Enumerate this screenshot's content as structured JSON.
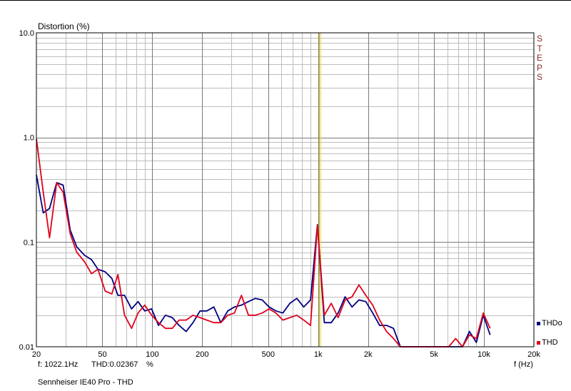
{
  "chart_data": {
    "type": "line",
    "ylabel": "Distortion (%)",
    "xlabel": "f (Hz)",
    "yscale": "log",
    "xscale": "log",
    "xlim": [
      20,
      20000
    ],
    "ylim": [
      0.01,
      10.0
    ],
    "x_ticks": [
      {
        "value": 20,
        "label": "20"
      },
      {
        "value": 50,
        "label": "50"
      },
      {
        "value": 100,
        "label": "100"
      },
      {
        "value": 200,
        "label": "200"
      },
      {
        "value": 500,
        "label": "500"
      },
      {
        "value": 1000,
        "label": "1k"
      },
      {
        "value": 2000,
        "label": "2k"
      },
      {
        "value": 5000,
        "label": "5k"
      },
      {
        "value": 10000,
        "label": "10k"
      },
      {
        "value": 20000,
        "label": "20k"
      }
    ],
    "y_ticks": [
      {
        "value": 10,
        "label": "10.0"
      },
      {
        "value": 1,
        "label": "1.0"
      },
      {
        "value": 0.1,
        "label": "0.1"
      },
      {
        "value": 0.01,
        "label": "0.01"
      }
    ],
    "grid": true,
    "cursor_x": 1022.1,
    "legend_position": "right-bottom",
    "series": [
      {
        "name": "THDo",
        "color": "#000080",
        "points": [
          [
            20,
            0.44
          ],
          [
            22,
            0.19
          ],
          [
            24,
            0.21
          ],
          [
            26.5,
            0.37
          ],
          [
            29,
            0.35
          ],
          [
            32,
            0.13
          ],
          [
            35,
            0.09
          ],
          [
            39,
            0.075
          ],
          [
            43,
            0.068
          ],
          [
            47,
            0.055
          ],
          [
            52,
            0.052
          ],
          [
            57,
            0.045
          ],
          [
            62,
            0.031
          ],
          [
            68,
            0.031
          ],
          [
            75,
            0.023
          ],
          [
            82,
            0.027
          ],
          [
            90,
            0.022
          ],
          [
            99,
            0.023
          ],
          [
            109,
            0.016
          ],
          [
            120,
            0.02
          ],
          [
            132,
            0.019
          ],
          [
            145,
            0.016
          ],
          [
            160,
            0.014
          ],
          [
            176,
            0.017
          ],
          [
            194,
            0.022
          ],
          [
            213,
            0.022
          ],
          [
            235,
            0.024
          ],
          [
            259,
            0.017
          ],
          [
            285,
            0.022
          ],
          [
            313,
            0.024
          ],
          [
            345,
            0.025
          ],
          [
            380,
            0.027
          ],
          [
            418,
            0.029
          ],
          [
            460,
            0.028
          ],
          [
            506,
            0.024
          ],
          [
            557,
            0.022
          ],
          [
            613,
            0.021
          ],
          [
            675,
            0.026
          ],
          [
            743,
            0.029
          ],
          [
            818,
            0.024
          ],
          [
            900,
            0.028
          ],
          [
            990,
            0.147
          ],
          [
            1090,
            0.017
          ],
          [
            1200,
            0.017
          ],
          [
            1321,
            0.021
          ],
          [
            1454,
            0.03
          ],
          [
            1600,
            0.024
          ],
          [
            1762,
            0.028
          ],
          [
            1939,
            0.027
          ],
          [
            2134,
            0.021
          ],
          [
            2349,
            0.016
          ],
          [
            2585,
            0.016
          ],
          [
            2846,
            0.015
          ],
          [
            3132,
            0.01
          ],
          [
            3448,
            0.0095
          ],
          [
            3795,
            0.0093
          ],
          [
            4177,
            0.0098
          ],
          [
            4597,
            0.0092
          ],
          [
            5060,
            0.0095
          ],
          [
            5569,
            0.0088
          ],
          [
            6130,
            0.0096
          ],
          [
            6747,
            0.0097
          ],
          [
            7426,
            0.0095
          ],
          [
            8173,
            0.014
          ],
          [
            8996,
            0.011
          ],
          [
            9901,
            0.02
          ],
          [
            10898,
            0.013
          ]
        ]
      },
      {
        "name": "THD",
        "color": "#e0001b",
        "points": [
          [
            20,
            0.97
          ],
          [
            22,
            0.3
          ],
          [
            24,
            0.11
          ],
          [
            26.5,
            0.37
          ],
          [
            29,
            0.3
          ],
          [
            32,
            0.12
          ],
          [
            35,
            0.08
          ],
          [
            39,
            0.065
          ],
          [
            43,
            0.05
          ],
          [
            47,
            0.055
          ],
          [
            52,
            0.034
          ],
          [
            57,
            0.032
          ],
          [
            62,
            0.049
          ],
          [
            68,
            0.02
          ],
          [
            75,
            0.015
          ],
          [
            82,
            0.021
          ],
          [
            90,
            0.025
          ],
          [
            99,
            0.02
          ],
          [
            109,
            0.017
          ],
          [
            120,
            0.015
          ],
          [
            132,
            0.015
          ],
          [
            145,
            0.018
          ],
          [
            160,
            0.018
          ],
          [
            176,
            0.02
          ],
          [
            194,
            0.019
          ],
          [
            213,
            0.018
          ],
          [
            235,
            0.017
          ],
          [
            259,
            0.017
          ],
          [
            285,
            0.02
          ],
          [
            313,
            0.021
          ],
          [
            345,
            0.031
          ],
          [
            380,
            0.02
          ],
          [
            418,
            0.02
          ],
          [
            460,
            0.021
          ],
          [
            506,
            0.023
          ],
          [
            557,
            0.021
          ],
          [
            613,
            0.018
          ],
          [
            675,
            0.019
          ],
          [
            743,
            0.02
          ],
          [
            818,
            0.018
          ],
          [
            900,
            0.016
          ],
          [
            990,
            0.145
          ],
          [
            1090,
            0.02
          ],
          [
            1200,
            0.026
          ],
          [
            1321,
            0.019
          ],
          [
            1454,
            0.028
          ],
          [
            1600,
            0.03
          ],
          [
            1762,
            0.039
          ],
          [
            1939,
            0.031
          ],
          [
            2134,
            0.025
          ],
          [
            2349,
            0.018
          ],
          [
            2585,
            0.014
          ],
          [
            2846,
            0.012
          ],
          [
            3132,
            0.0095
          ],
          [
            3448,
            0.0093
          ],
          [
            3795,
            0.0097
          ],
          [
            4177,
            0.0092
          ],
          [
            4597,
            0.0096
          ],
          [
            5060,
            0.01
          ],
          [
            5569,
            0.0095
          ],
          [
            6130,
            0.01
          ],
          [
            6747,
            0.012
          ],
          [
            7426,
            0.01
          ],
          [
            8173,
            0.013
          ],
          [
            8996,
            0.012
          ],
          [
            9901,
            0.021
          ],
          [
            10898,
            0.015
          ]
        ]
      }
    ]
  },
  "header": {
    "ylabel": "Distortion (%)",
    "side_label": "STEPS"
  },
  "readout": {
    "freq": "f: 1022.1Hz",
    "value": "THD:0.02367",
    "unit": "%"
  },
  "footer": {
    "caption": "Sennheiser IE40 Pro - THD",
    "x_unit": "f (Hz)"
  },
  "legend": [
    {
      "label": "THDo",
      "color": "#000080"
    },
    {
      "label": "THD",
      "color": "#e0001b"
    }
  ]
}
